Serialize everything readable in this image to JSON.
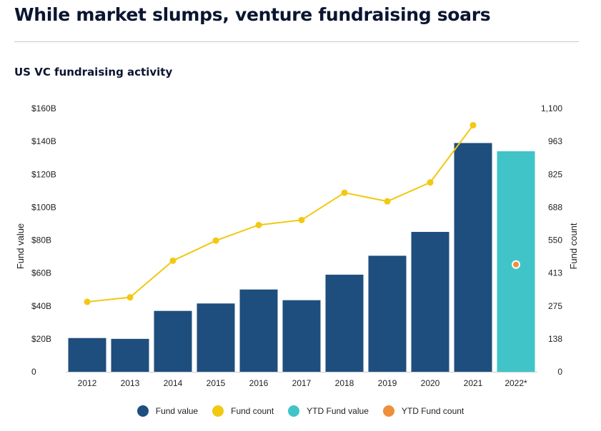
{
  "headline": "While market slumps, venture fundraising soars",
  "subtitle": "US VC fundraising activity",
  "colors": {
    "fund_value": "#1e4e7e",
    "fund_count": "#f2c811",
    "ytd_fund_value": "#40c4c8",
    "ytd_fund_count": "#ee8f3a",
    "axis_text": "#222222",
    "baseline": "#cccccc"
  },
  "chart_data": {
    "type": "bar",
    "title": "US VC fundraising activity",
    "categories": [
      "2012",
      "2013",
      "2014",
      "2015",
      "2016",
      "2017",
      "2018",
      "2019",
      "2020",
      "2021",
      "2022*"
    ],
    "ylabel_left": "Fund value",
    "ylabel_right": "Fund count",
    "ylim_left": [
      0,
      160
    ],
    "ylim_right": [
      0,
      1100
    ],
    "left_ticks": [
      "0",
      "$20B",
      "$40B",
      "$60B",
      "$80B",
      "$100B",
      "$120B",
      "$140B",
      "$160B"
    ],
    "right_ticks": [
      "0",
      "138",
      "275",
      "413",
      "550",
      "688",
      "825",
      "963",
      "1,100"
    ],
    "series": [
      {
        "name": "Fund value",
        "kind": "bar",
        "axis": "left",
        "color": "#1e4e7e",
        "values": [
          20.5,
          20,
          37,
          41.5,
          50,
          43.5,
          59,
          70.5,
          85,
          139,
          null
        ]
      },
      {
        "name": "Fund count",
        "kind": "line",
        "axis": "right",
        "color": "#f2c811",
        "values": [
          292,
          311,
          464,
          548,
          613,
          634,
          748,
          712,
          791,
          1030,
          null
        ]
      },
      {
        "name": "YTD Fund value",
        "kind": "bar",
        "axis": "left",
        "color": "#40c4c8",
        "values": [
          null,
          null,
          null,
          null,
          null,
          null,
          null,
          null,
          null,
          null,
          134
        ]
      },
      {
        "name": "YTD Fund count",
        "kind": "point",
        "axis": "right",
        "color": "#ee8f3a",
        "values": [
          null,
          null,
          null,
          null,
          null,
          null,
          null,
          null,
          null,
          null,
          448
        ]
      }
    ],
    "legend": [
      "Fund value",
      "Fund count",
      "YTD Fund value",
      "YTD Fund count"
    ],
    "legend_position": "bottom",
    "grid": false
  }
}
